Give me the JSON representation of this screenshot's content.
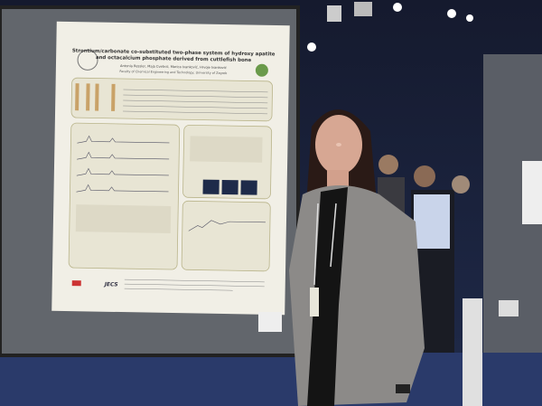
{
  "poster": {
    "title_lines": [
      "Strontium/carbonate co-substituted two-phase system of hydroxy apatite",
      "and octacalcium phosphate derived from cuttlefish bone"
    ],
    "authors": "Antonia Ressler, Maja Cvetnić, Marica Ivanković, Hrvoje Ivanković",
    "affiliation": "Faculty of Chemical Engineering and Technology, University of Zagreb",
    "sponsor": "JECS"
  }
}
